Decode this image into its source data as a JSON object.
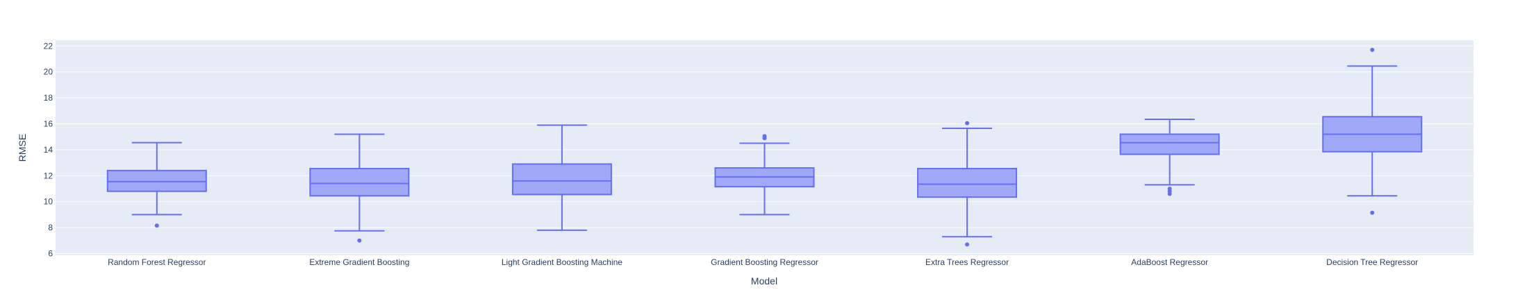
{
  "chart_data": {
    "type": "box",
    "xlabel": "Model",
    "ylabel": "RMSE",
    "ylim": [
      5.8,
      22.6
    ],
    "yticks": [
      6,
      8,
      10,
      12,
      14,
      16,
      18,
      20,
      22
    ],
    "grid": true,
    "colors": {
      "plot_background": "#e5ecf6",
      "gridline": "#ffffff",
      "box_line": "#636efa",
      "box_fill": "#a2a8f8",
      "text": "#2a3f5f"
    },
    "categories": [
      "Random Forest Regressor",
      "Extreme Gradient Boosting",
      "Light Gradient Boosting Machine",
      "Gradient Boosting Regressor",
      "Extra Trees Regressor",
      "AdaBoost Regressor",
      "Decision Tree Regressor"
    ],
    "boxes": [
      {
        "whisker_low": 9.0,
        "q1": 10.8,
        "median": 11.55,
        "q3": 12.4,
        "whisker_high": 14.55,
        "outliers": [
          8.15
        ]
      },
      {
        "whisker_low": 7.75,
        "q1": 10.45,
        "median": 11.4,
        "q3": 12.55,
        "whisker_high": 15.2,
        "outliers": [
          7.0
        ]
      },
      {
        "whisker_low": 7.8,
        "q1": 10.55,
        "median": 11.6,
        "q3": 12.9,
        "whisker_high": 15.9,
        "outliers": []
      },
      {
        "whisker_low": 9.0,
        "q1": 11.15,
        "median": 11.9,
        "q3": 12.6,
        "whisker_high": 14.5,
        "outliers": [
          14.9,
          15.05
        ]
      },
      {
        "whisker_low": 7.3,
        "q1": 10.35,
        "median": 11.35,
        "q3": 12.55,
        "whisker_high": 15.65,
        "outliers": [
          16.05,
          6.7
        ]
      },
      {
        "whisker_low": 11.3,
        "q1": 13.65,
        "median": 14.55,
        "q3": 15.2,
        "whisker_high": 16.35,
        "outliers": [
          11.0,
          10.8,
          10.6
        ]
      },
      {
        "whisker_low": 10.45,
        "q1": 13.85,
        "median": 15.2,
        "q3": 16.55,
        "whisker_high": 20.45,
        "outliers": [
          21.7,
          9.15
        ]
      }
    ]
  }
}
